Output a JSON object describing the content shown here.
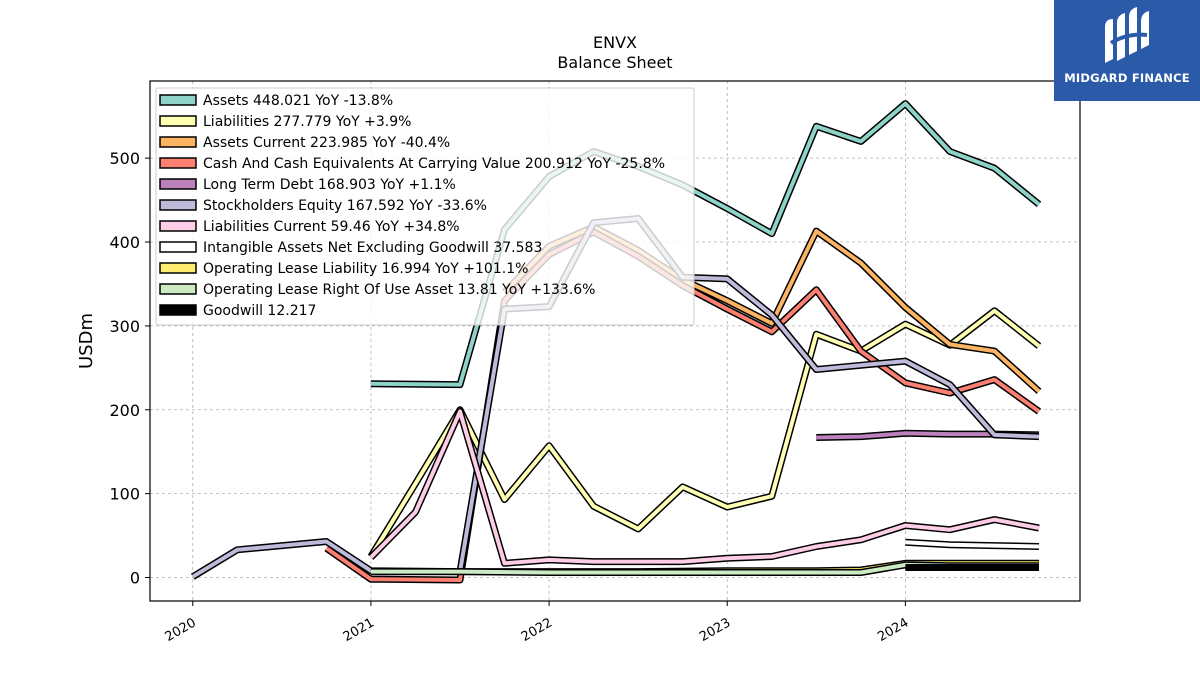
{
  "chart_data": {
    "type": "line",
    "title": "ENVX",
    "subtitle": "Balance  Sheet",
    "ylabel": "USDm",
    "xlabel": "",
    "xlim": [
      2019.75,
      2020.0,
      2021.0,
      2022.0,
      2023.0,
      2024.0,
      2025.0
    ],
    "xrange": [
      2019.76,
      2024.98
    ],
    "ylim": [
      -28,
      592
    ],
    "yticks": [
      0,
      100,
      200,
      300,
      400,
      500
    ],
    "xticks": [
      "2020",
      "2021",
      "2022",
      "2023",
      "2024"
    ],
    "xtick_values": [
      2020,
      2021,
      2022,
      2023,
      2024
    ],
    "grid": true,
    "legend_position": "upper-left",
    "series": [
      {
        "name": "Assets",
        "legend": "Assets  448.021 YoY -13.8%",
        "color": "#8dd3c7",
        "points": [
          [
            2021.0,
            231
          ],
          [
            2021.5,
            230
          ],
          [
            2021.75,
            415
          ],
          [
            2022.0,
            478
          ],
          [
            2022.25,
            508
          ],
          [
            2022.5,
            490
          ],
          [
            2022.75,
            468
          ],
          [
            2023.0,
            440
          ],
          [
            2023.25,
            410
          ],
          [
            2023.5,
            538
          ],
          [
            2023.75,
            520
          ],
          [
            2024.0,
            565
          ],
          [
            2024.25,
            508
          ],
          [
            2024.5,
            488
          ],
          [
            2024.75,
            445
          ]
        ]
      },
      {
        "name": "Liabilities",
        "legend": "Liabilities  277.779 YoY +3.9%",
        "color": "#ffffb3",
        "points": [
          [
            2021.0,
            25
          ],
          [
            2021.25,
            112
          ],
          [
            2021.5,
            200
          ],
          [
            2021.75,
            93
          ],
          [
            2022.0,
            157
          ],
          [
            2022.25,
            85
          ],
          [
            2022.5,
            58
          ],
          [
            2022.75,
            108
          ],
          [
            2023.0,
            84
          ],
          [
            2023.25,
            97
          ],
          [
            2023.5,
            290
          ],
          [
            2023.75,
            270
          ],
          [
            2024.0,
            302
          ],
          [
            2024.25,
            277
          ],
          [
            2024.5,
            318
          ],
          [
            2024.75,
            276
          ]
        ]
      },
      {
        "name": "Assets Current",
        "legend": "Assets Current  223.985 YoY -40.4%",
        "color": "#fdb462",
        "points": [
          [
            2021.75,
            340
          ],
          [
            2022.0,
            395
          ],
          [
            2022.25,
            418
          ],
          [
            2022.5,
            390
          ],
          [
            2022.75,
            355
          ],
          [
            2023.0,
            330
          ],
          [
            2023.25,
            303
          ],
          [
            2023.5,
            413
          ],
          [
            2023.75,
            375
          ],
          [
            2024.0,
            322
          ],
          [
            2024.25,
            278
          ],
          [
            2024.5,
            270
          ],
          [
            2024.75,
            222
          ]
        ]
      },
      {
        "name": "Cash And Cash Equivalents At Carrying Value",
        "legend": "Cash And Cash Equivalents At Carrying Value  200.912 YoY -25.8%",
        "color": "#fb8072",
        "points": [
          [
            2020.75,
            35
          ],
          [
            2021.0,
            -2
          ],
          [
            2021.5,
            -3
          ],
          [
            2021.75,
            330
          ],
          [
            2022.0,
            385
          ],
          [
            2022.25,
            412
          ],
          [
            2022.5,
            383
          ],
          [
            2022.75,
            348
          ],
          [
            2023.0,
            320
          ],
          [
            2023.25,
            293
          ],
          [
            2023.5,
            343
          ],
          [
            2023.75,
            270
          ],
          [
            2024.0,
            232
          ],
          [
            2024.25,
            220
          ],
          [
            2024.5,
            236
          ],
          [
            2024.75,
            198
          ]
        ]
      },
      {
        "name": "Long Term Debt",
        "legend": "Long Term Debt  168.903 YoY +1.1%",
        "color": "#bc80bd",
        "points": [
          [
            2023.5,
            167
          ],
          [
            2023.75,
            168
          ],
          [
            2024.0,
            172
          ],
          [
            2024.25,
            171
          ],
          [
            2024.5,
            171
          ],
          [
            2024.75,
            170
          ]
        ]
      },
      {
        "name": "Stockholders Equity",
        "legend": "Stockholders Equity  167.592 YoY -33.6%",
        "color": "#bebada",
        "points": [
          [
            2020.0,
            1
          ],
          [
            2020.25,
            33
          ],
          [
            2020.75,
            43
          ],
          [
            2021.0,
            8
          ],
          [
            2021.5,
            7
          ],
          [
            2021.75,
            320
          ],
          [
            2022.0,
            323
          ],
          [
            2022.25,
            423
          ],
          [
            2022.5,
            428
          ],
          [
            2022.75,
            358
          ],
          [
            2023.0,
            356
          ],
          [
            2023.25,
            313
          ],
          [
            2023.5,
            248
          ],
          [
            2023.75,
            253
          ],
          [
            2024.0,
            258
          ],
          [
            2024.25,
            230
          ],
          [
            2024.5,
            170
          ],
          [
            2024.75,
            168
          ]
        ]
      },
      {
        "name": "Liabilities Current",
        "legend": "Liabilities Current  59.46 YoY +34.8%",
        "color": "#fccde5",
        "points": [
          [
            2021.0,
            24
          ],
          [
            2021.25,
            78
          ],
          [
            2021.5,
            198
          ],
          [
            2021.75,
            17
          ],
          [
            2022.0,
            21
          ],
          [
            2022.25,
            19
          ],
          [
            2022.5,
            19
          ],
          [
            2022.75,
            19
          ],
          [
            2023.0,
            23
          ],
          [
            2023.25,
            25
          ],
          [
            2023.5,
            37
          ],
          [
            2023.75,
            45
          ],
          [
            2024.0,
            62
          ],
          [
            2024.25,
            57
          ],
          [
            2024.5,
            69
          ],
          [
            2024.75,
            59
          ]
        ]
      },
      {
        "name": "Intangible Assets Net Excluding Goodwill",
        "legend": "Intangible Assets Net Excluding Goodwill  37.583",
        "color": "#ffffff",
        "points": [
          [
            2024.0,
            42
          ],
          [
            2024.25,
            39
          ],
          [
            2024.5,
            38
          ],
          [
            2024.75,
            37
          ]
        ]
      },
      {
        "name": "Operating Lease Liability",
        "legend": "Operating Lease Liability  16.994 YoY +101.1%",
        "color": "#ffed6f",
        "points": [
          [
            2021.0,
            7
          ],
          [
            2021.5,
            7
          ],
          [
            2022.0,
            7
          ],
          [
            2022.5,
            7
          ],
          [
            2023.0,
            8
          ],
          [
            2023.5,
            8
          ],
          [
            2023.75,
            9
          ],
          [
            2024.0,
            17
          ],
          [
            2024.25,
            17
          ],
          [
            2024.5,
            17
          ],
          [
            2024.75,
            17
          ]
        ]
      },
      {
        "name": "Operating Lease Right Of Use Asset",
        "legend": "Operating Lease Right Of Use Asset  13.81 YoY +133.6%",
        "color": "#ccebc5",
        "points": [
          [
            2021.0,
            7
          ],
          [
            2021.5,
            7
          ],
          [
            2022.0,
            6
          ],
          [
            2022.5,
            6
          ],
          [
            2023.0,
            6
          ],
          [
            2023.5,
            6
          ],
          [
            2023.75,
            6
          ],
          [
            2024.0,
            15
          ],
          [
            2024.25,
            14
          ],
          [
            2024.5,
            14
          ],
          [
            2024.75,
            14
          ]
        ]
      },
      {
        "name": "Goodwill",
        "legend": "Goodwill  12.217",
        "color": "#000000",
        "points": [
          [
            2024.0,
            12
          ],
          [
            2024.25,
            12
          ],
          [
            2024.5,
            12
          ],
          [
            2024.75,
            12
          ]
        ]
      }
    ]
  },
  "logo": {
    "text": "MIDGARD FINANCE",
    "color": "#2b5aa8"
  }
}
